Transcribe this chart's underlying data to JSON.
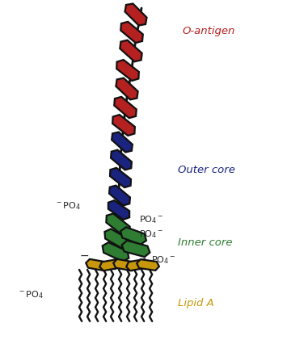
{
  "bg_color": "#ffffff",
  "label_o_antigen": "O-antigen",
  "label_outer_core": "Outer core",
  "label_inner_core": "Inner core",
  "label_lipid_a": "Lipid A",
  "color_o_antigen": "#b52020",
  "color_outer_core": "#1a237e",
  "color_inner_core": "#2e7d32",
  "color_lipid_a": "#c8960a",
  "color_black": "#111111",
  "po4_color": "#222222",
  "label_fontsize": 9.5,
  "po4_fontsize": 8.0
}
